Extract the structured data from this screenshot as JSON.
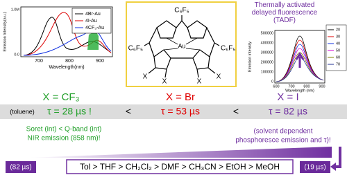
{
  "left_plot": {
    "y_label": "Emission Intensity(a.u.)",
    "x_label": "Wavelength(nm)",
    "yticks": [
      "1.0M",
      "0.0"
    ],
    "xticks": [
      "700",
      "800",
      "900"
    ],
    "legend": [
      "4Br-Au",
      "4I-Au",
      "4CF₃-Au"
    ]
  },
  "structure": {
    "top_group": "C₆F₅",
    "left_group": "C₆F₅",
    "right_group": "C₆F₅",
    "metal": "Au",
    "substituents": [
      "X",
      "X",
      "X",
      "X"
    ]
  },
  "right_plot": {
    "title": "Thermally activated delayed fluorescence (TADF)",
    "y_label": "Emission intensity",
    "x_label": "Wavelength (nm)",
    "yticks": [
      "500000",
      "400000",
      "300000",
      "200000",
      "100000",
      "0"
    ],
    "xticks": [
      "600",
      "700",
      "800",
      "900"
    ],
    "legend": [
      "20",
      "30",
      "40",
      "50",
      "60",
      "70"
    ]
  },
  "columns": [
    {
      "label": "X = CF₃",
      "lifetime": "τ = 28 µs !"
    },
    {
      "label": "X = Br",
      "lifetime": "τ = 53 µs"
    },
    {
      "label": "X = I",
      "lifetime": "τ = 82 µs"
    }
  ],
  "solvent_note": "(toluene)",
  "comparators": [
    "<",
    "<"
  ],
  "left_note": [
    "Soret (int) < Q-band (int)",
    "NIR emission (858 nm)!"
  ],
  "right_note": [
    "(solvent dependent",
    "phosphoresce emission and τ)!"
  ],
  "solvent_series": {
    "start": "(82 µs)",
    "order": "Tol > THF > CH₂Cl₂ > DMF > CH₃CN > EtOH > MeOH",
    "end": "(19 µs)"
  }
}
